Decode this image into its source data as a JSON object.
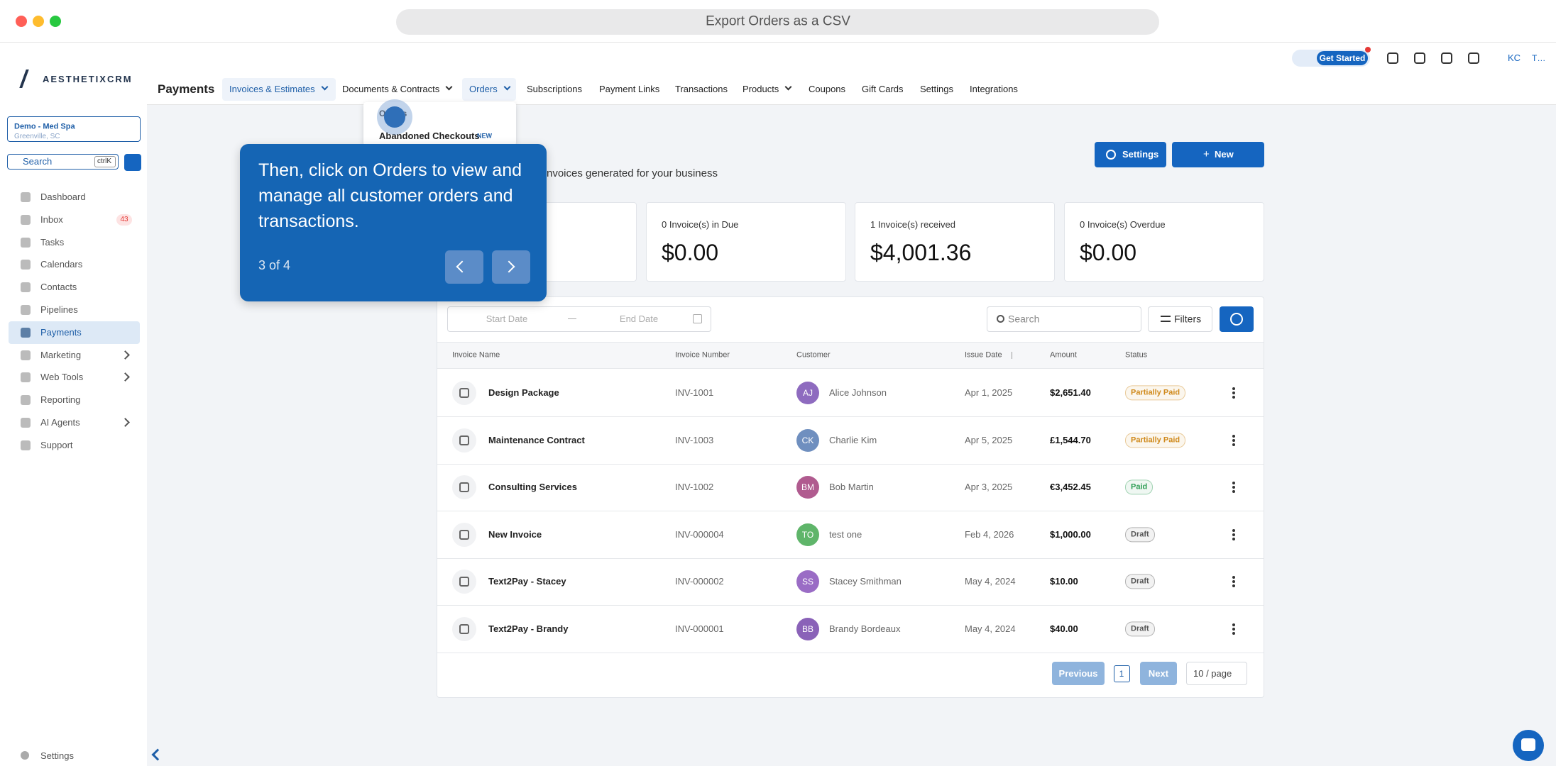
{
  "window_title": "Export Orders as a CSV",
  "topbar": {
    "get_started": "Get Started",
    "user_initials": "KC",
    "account": "T…"
  },
  "sidebar": {
    "logo": "AESTHETIXCRM",
    "location": {
      "name": "Demo - Med Spa",
      "city": "Greenville, SC"
    },
    "search": "Search",
    "shortcut": "ctrlK",
    "nav": [
      {
        "label": "Dashboard"
      },
      {
        "label": "Inbox",
        "badge": "43"
      },
      {
        "label": "Tasks"
      },
      {
        "label": "Calendars"
      },
      {
        "label": "Contacts"
      },
      {
        "label": "Pipelines"
      },
      {
        "label": "Payments",
        "active": true
      },
      {
        "label": "Marketing",
        "expandable": true
      },
      {
        "label": "Web Tools",
        "expandable": true
      },
      {
        "label": "Reporting"
      },
      {
        "label": "AI Agents",
        "expandable": true
      },
      {
        "label": "Support"
      }
    ],
    "footer": "Settings"
  },
  "header": {
    "title": "Payments",
    "tabs": [
      "Invoices & Estimates",
      "Documents & Contracts",
      "Orders",
      "Subscriptions",
      "Payment Links",
      "Transactions",
      "Products",
      "Coupons",
      "Gift Cards",
      "Settings",
      "Integrations"
    ]
  },
  "dropdown": {
    "items": [
      "Orders",
      "Abandoned Checkouts"
    ],
    "badge": "NEW"
  },
  "tour": {
    "text": "Then, click on Orders to view and manage all customer orders and transactions.",
    "step": "3 of 4"
  },
  "page": {
    "subtitle": "nvoices generated for your business",
    "buttons": [
      "Settings",
      "New"
    ]
  },
  "cards": [
    {
      "label": "0 Invoice(s) in Due",
      "amount": "$0.00"
    },
    {
      "label": "1 Invoice(s) received",
      "amount": "$4,001.36"
    },
    {
      "label": "0 Invoice(s) Overdue",
      "amount": "$0.00"
    }
  ],
  "filters": {
    "start": "Start Date",
    "end": "End Date",
    "search": "Search",
    "filters": "Filters"
  },
  "table": {
    "columns": [
      "Invoice Name",
      "Invoice Number",
      "Customer",
      "Issue Date",
      "Amount",
      "Status"
    ],
    "rows": [
      {
        "name": "Design Package",
        "number": "INV-1001",
        "initials": "AJ",
        "customer": "Alice Johnson",
        "date": "Apr 1, 2025",
        "amount": "$2,651.40",
        "status": "Partially Paid",
        "avatar_color": "#8e6bbf",
        "status_color": "#d08a1c"
      },
      {
        "name": "Maintenance Contract",
        "number": "INV-1003",
        "initials": "CK",
        "customer": "Charlie Kim",
        "date": "Apr 5, 2025",
        "amount": "£1,544.70",
        "status": "Partially Paid",
        "avatar_color": "#6f8fbf",
        "status_color": "#d08a1c"
      },
      {
        "name": "Consulting Services",
        "number": "INV-1002",
        "initials": "BM",
        "customer": "Bob Martin",
        "date": "Apr 3, 2025",
        "amount": "€3,452.45",
        "status": "Paid",
        "avatar_color": "#b05b8f",
        "status_color": "#2e9e55"
      },
      {
        "name": "New Invoice",
        "number": "INV-000004",
        "initials": "TO",
        "customer": "test one",
        "date": "Feb 4, 2026",
        "amount": "$1,000.00",
        "status": "Draft",
        "avatar_color": "#5fb56a",
        "status_color": "#555555"
      },
      {
        "name": "Text2Pay - Stacey",
        "number": "INV-000002",
        "initials": "SS",
        "customer": "Stacey Smithman",
        "date": "May 4, 2024",
        "amount": "$10.00",
        "status": "Draft",
        "avatar_color": "#9a6cc5",
        "status_color": "#555555"
      },
      {
        "name": "Text2Pay - Brandy",
        "number": "INV-000001",
        "initials": "BB",
        "customer": "Brandy Bordeaux",
        "date": "May 4, 2024",
        "amount": "$40.00",
        "status": "Draft",
        "avatar_color": "#8a62b8",
        "status_color": "#555555"
      }
    ]
  },
  "pagination": {
    "previous": "Previous",
    "page": "1",
    "next": "Next",
    "per_page": "10 / page"
  }
}
